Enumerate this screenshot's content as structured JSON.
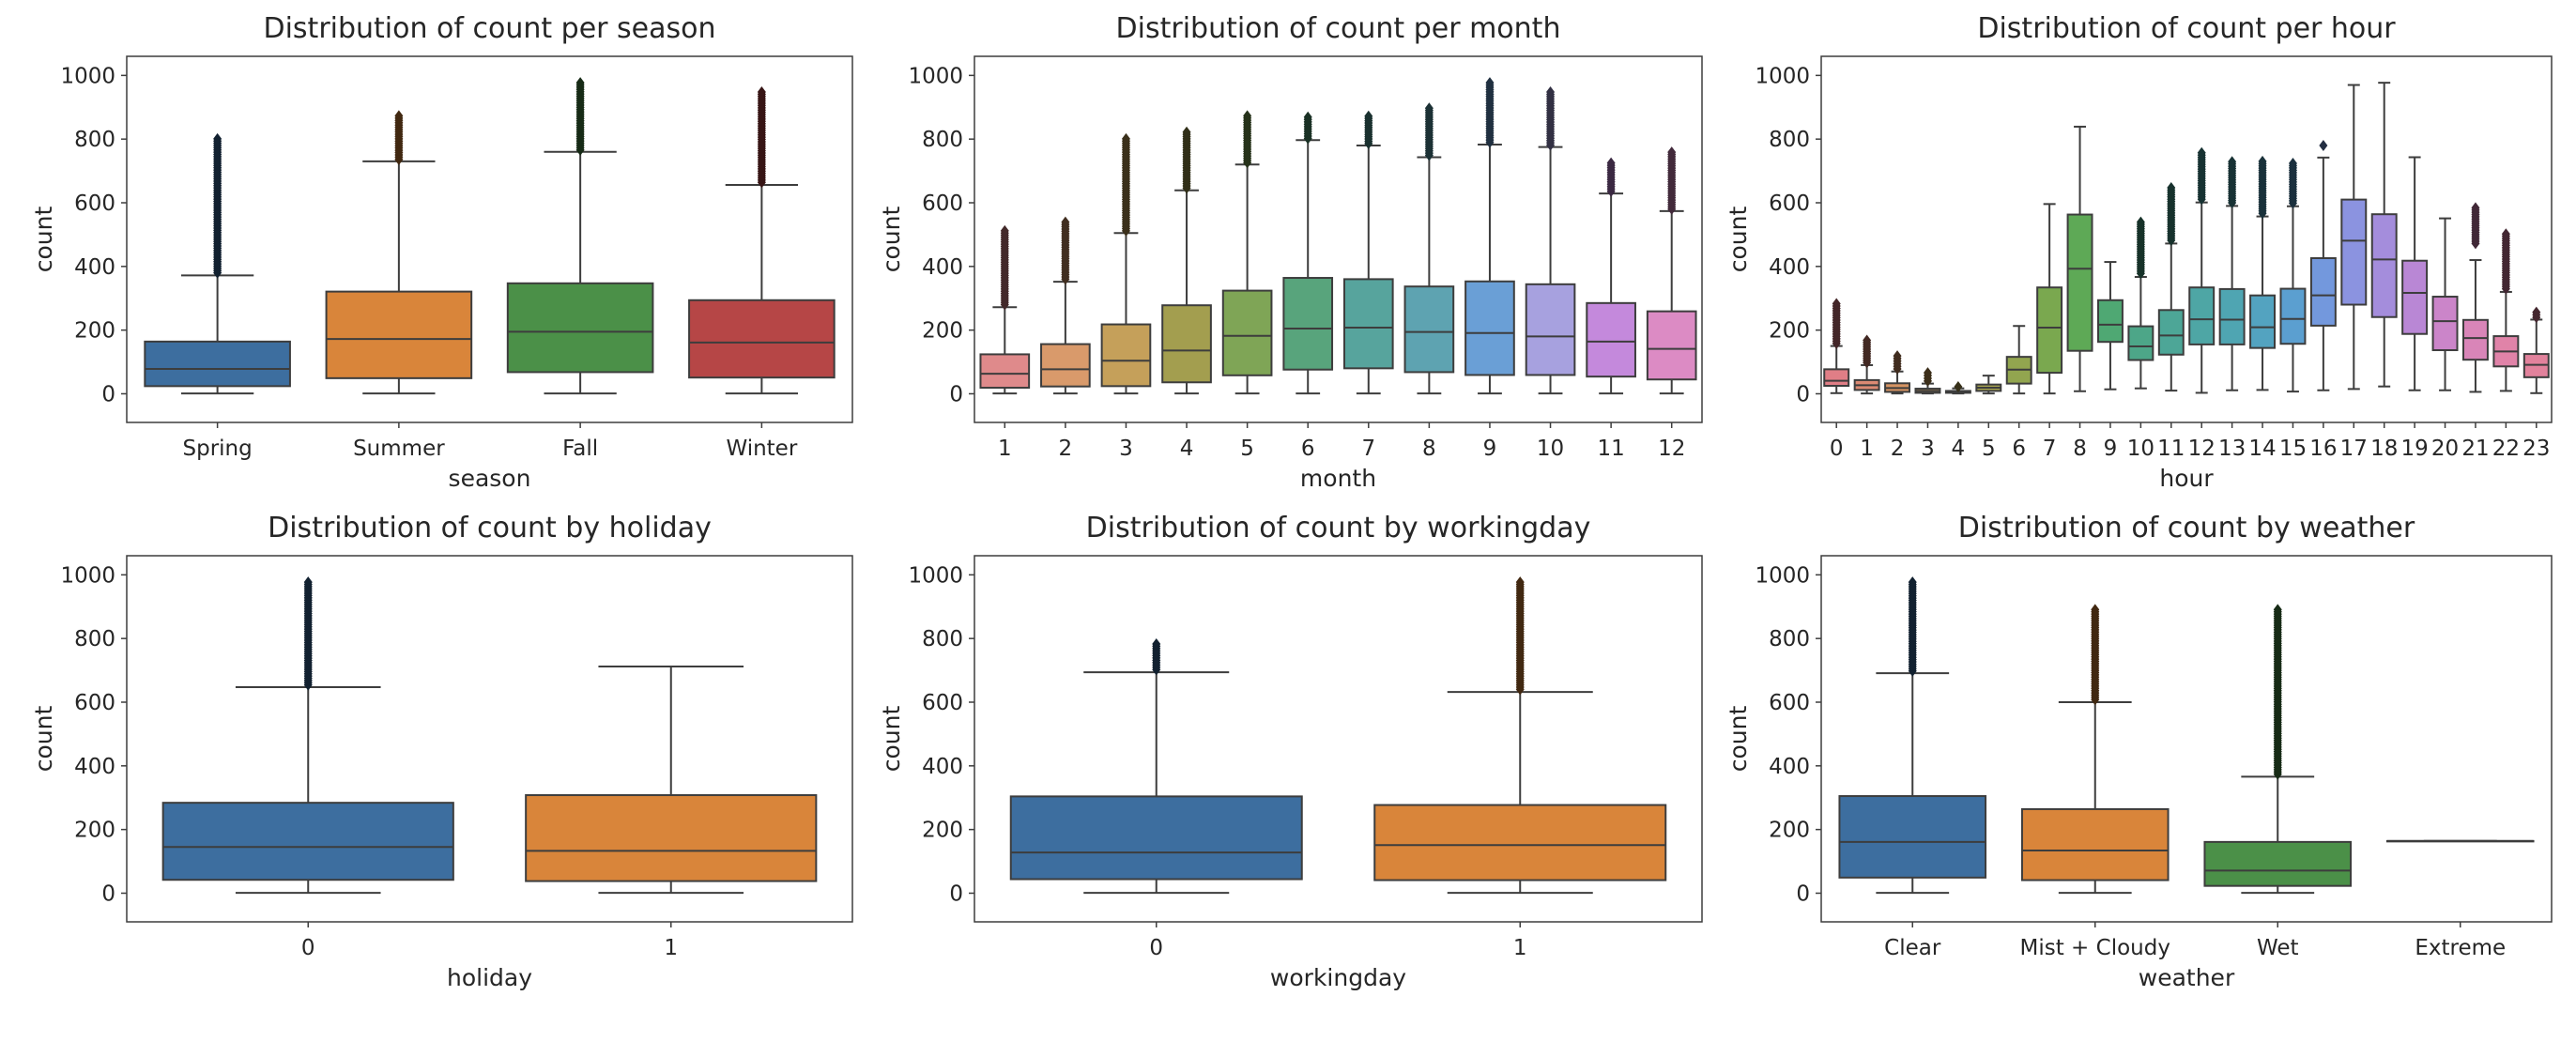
{
  "colors": {
    "deep": [
      "#3d6e9f",
      "#d9853a",
      "#4b9048",
      "#b64646"
    ],
    "month": [
      "#df8a8b",
      "#d99a6b",
      "#c5a05a",
      "#a39e4f",
      "#7fa556",
      "#58a47c",
      "#57a49d",
      "#5ea3b1",
      "#6a9fd6",
      "#a7a1df",
      "#c489dc",
      "#dc8bc4"
    ],
    "hour": [
      "#e07e86",
      "#dc8a73",
      "#d69463",
      "#c89a56",
      "#b79f52",
      "#a6a34f",
      "#92a54f",
      "#7aa84f",
      "#5ea956",
      "#4fa873",
      "#4da688",
      "#4da697",
      "#4ea6a5",
      "#4fa5b2",
      "#53a3c0",
      "#5b9fd0",
      "#7398dd",
      "#8b93e0",
      "#a48ddc",
      "#b987d5",
      "#cb85c9",
      "#d985b8",
      "#e083a8",
      "#e2829c"
    ],
    "edge": "#3d3d3d",
    "frame": "#3d3d3d"
  },
  "chart_data": [
    {
      "type": "box",
      "title": "Distribution of count per season",
      "xlabel": "season",
      "ylabel": "count",
      "ylim": [
        -90,
        1060
      ],
      "yticks": [
        0,
        200,
        400,
        600,
        800,
        1000
      ],
      "palette": "deep",
      "categories": [
        "Spring",
        "Summer",
        "Fall",
        "Winter"
      ],
      "boxes": [
        {
          "whislo": 1,
          "q1": 24,
          "med": 78,
          "q3": 164,
          "whishi": 372,
          "flier_from": 380,
          "flier_to": 801
        },
        {
          "whislo": 1,
          "q1": 49,
          "med": 172,
          "q3": 321,
          "whishi": 730,
          "flier_from": 736,
          "flier_to": 873
        },
        {
          "whislo": 1,
          "q1": 68,
          "med": 195,
          "q3": 347,
          "whishi": 760,
          "flier_from": 766,
          "flier_to": 977
        },
        {
          "whislo": 1,
          "q1": 51,
          "med": 161,
          "q3": 294,
          "whishi": 656,
          "flier_from": 664,
          "flier_to": 948
        }
      ]
    },
    {
      "type": "box",
      "title": "Distribution of count per month",
      "xlabel": "month",
      "ylabel": "count",
      "ylim": [
        -90,
        1060
      ],
      "yticks": [
        0,
        200,
        400,
        600,
        800,
        1000
      ],
      "palette": "month",
      "categories": [
        "1",
        "2",
        "3",
        "4",
        "5",
        "6",
        "7",
        "8",
        "9",
        "10",
        "11",
        "12"
      ],
      "boxes": [
        {
          "whislo": 1,
          "q1": 19,
          "med": 63,
          "q3": 124,
          "whishi": 272,
          "flier_from": 280,
          "flier_to": 512
        },
        {
          "whislo": 1,
          "q1": 23,
          "med": 77,
          "q3": 156,
          "whishi": 352,
          "flier_from": 360,
          "flier_to": 539
        },
        {
          "whislo": 1,
          "q1": 24,
          "med": 104,
          "q3": 218,
          "whishi": 505,
          "flier_from": 512,
          "flier_to": 801
        },
        {
          "whislo": 1,
          "q1": 36,
          "med": 136,
          "q3": 278,
          "whishi": 639,
          "flier_from": 646,
          "flier_to": 822
        },
        {
          "whislo": 1,
          "q1": 58,
          "med": 182,
          "q3": 324,
          "whishi": 720,
          "flier_from": 726,
          "flier_to": 873
        },
        {
          "whislo": 1,
          "q1": 76,
          "med": 205,
          "q3": 364,
          "whishi": 797,
          "flier_from": 802,
          "flier_to": 869
        },
        {
          "whislo": 1,
          "q1": 80,
          "med": 208,
          "q3": 360,
          "whishi": 780,
          "flier_from": 786,
          "flier_to": 872
        },
        {
          "whislo": 1,
          "q1": 68,
          "med": 194,
          "q3": 337,
          "whishi": 743,
          "flier_from": 749,
          "flier_to": 897
        },
        {
          "whislo": 1,
          "q1": 59,
          "med": 191,
          "q3": 353,
          "whishi": 783,
          "flier_from": 790,
          "flier_to": 977
        },
        {
          "whislo": 1,
          "q1": 59,
          "med": 180,
          "q3": 344,
          "whishi": 775,
          "flier_from": 781,
          "flier_to": 948
        },
        {
          "whislo": 1,
          "q1": 54,
          "med": 164,
          "q3": 285,
          "whishi": 629,
          "flier_from": 636,
          "flier_to": 725
        },
        {
          "whislo": 1,
          "q1": 45,
          "med": 141,
          "q3": 259,
          "whishi": 574,
          "flier_from": 580,
          "flier_to": 759
        }
      ]
    },
    {
      "type": "box",
      "title": "Distribution of count per hour",
      "xlabel": "hour",
      "ylabel": "count",
      "ylim": [
        -90,
        1060
      ],
      "yticks": [
        0,
        200,
        400,
        600,
        800,
        1000
      ],
      "palette": "hour",
      "categories": [
        "0",
        "1",
        "2",
        "3",
        "4",
        "5",
        "6",
        "7",
        "8",
        "9",
        "10",
        "11",
        "12",
        "13",
        "14",
        "15",
        "16",
        "17",
        "18",
        "19",
        "20",
        "21",
        "22",
        "23"
      ],
      "boxes": [
        {
          "whislo": 2,
          "q1": 25,
          "med": 41,
          "q3": 77,
          "whishi": 150,
          "flier_from": 158,
          "flier_to": 283
        },
        {
          "whislo": 1,
          "q1": 12,
          "med": 27,
          "q3": 43,
          "whishi": 90,
          "flier_from": 98,
          "flier_to": 168
        },
        {
          "whislo": 1,
          "q1": 6,
          "med": 18,
          "q3": 33,
          "whishi": 70,
          "flier_from": 78,
          "flier_to": 119
        },
        {
          "whislo": 1,
          "q1": 3,
          "med": 9,
          "q3": 16,
          "whishi": 32,
          "flier_from": 40,
          "flier_to": 66
        },
        {
          "whislo": 1,
          "q1": 3,
          "med": 6,
          "q3": 9,
          "whishi": 17,
          "flier_from": 22,
          "flier_to": 28
        },
        {
          "whislo": 1,
          "q1": 9,
          "med": 19,
          "q3": 29,
          "whishi": 57
        },
        {
          "whislo": 1,
          "q1": 32,
          "med": 76,
          "q3": 116,
          "whishi": 213
        },
        {
          "whislo": 1,
          "q1": 66,
          "med": 208,
          "q3": 334,
          "whishi": 596
        },
        {
          "whislo": 8,
          "q1": 135,
          "med": 393,
          "q3": 563,
          "whishi": 839
        },
        {
          "whislo": 14,
          "q1": 163,
          "med": 217,
          "q3": 294,
          "whishi": 414
        },
        {
          "whislo": 17,
          "q1": 106,
          "med": 149,
          "q3": 212,
          "whishi": 367,
          "flier_from": 378,
          "flier_to": 539
        },
        {
          "whislo": 10,
          "q1": 123,
          "med": 183,
          "q3": 263,
          "whishi": 472,
          "flier_from": 482,
          "flier_to": 647
        },
        {
          "whislo": 3,
          "q1": 155,
          "med": 234,
          "q3": 334,
          "whishi": 601,
          "flier_from": 611,
          "flier_to": 757
        },
        {
          "whislo": 11,
          "q1": 155,
          "med": 233,
          "q3": 329,
          "whishi": 590,
          "flier_from": 600,
          "flier_to": 729
        },
        {
          "whislo": 12,
          "q1": 144,
          "med": 209,
          "q3": 309,
          "whishi": 557,
          "flier_from": 567,
          "flier_to": 730
        },
        {
          "whislo": 7,
          "q1": 157,
          "med": 235,
          "q3": 330,
          "whishi": 589,
          "flier_from": 599,
          "flier_to": 724
        },
        {
          "whislo": 11,
          "q1": 214,
          "med": 309,
          "q3": 426,
          "whishi": 742,
          "flier_from": 780,
          "flier_to": 780
        },
        {
          "whislo": 15,
          "q1": 280,
          "med": 481,
          "q3": 610,
          "whishi": 970
        },
        {
          "whislo": 23,
          "q1": 241,
          "med": 422,
          "q3": 564,
          "whishi": 977
        },
        {
          "whislo": 11,
          "q1": 188,
          "med": 317,
          "q3": 418,
          "whishi": 743
        },
        {
          "whislo": 11,
          "q1": 137,
          "med": 228,
          "q3": 305,
          "whishi": 551
        },
        {
          "whislo": 6,
          "q1": 107,
          "med": 175,
          "q3": 232,
          "whishi": 420,
          "flier_from": 472,
          "flier_to": 584
        },
        {
          "whislo": 9,
          "q1": 86,
          "med": 133,
          "q3": 181,
          "whishi": 320,
          "flier_from": 330,
          "flier_to": 502
        },
        {
          "whislo": 2,
          "q1": 52,
          "med": 91,
          "q3": 125,
          "whishi": 233,
          "flier_from": 240,
          "flier_to": 256
        }
      ]
    },
    {
      "type": "box",
      "title": "Distribution of count by holiday",
      "xlabel": "holiday",
      "ylabel": "count",
      "ylim": [
        -90,
        1060
      ],
      "yticks": [
        0,
        200,
        400,
        600,
        800,
        1000
      ],
      "palette": "deep",
      "categories": [
        "0",
        "1"
      ],
      "boxes": [
        {
          "whislo": 1,
          "q1": 42,
          "med": 145,
          "q3": 284,
          "whishi": 647,
          "flier_from": 654,
          "flier_to": 977
        },
        {
          "whislo": 1,
          "q1": 38,
          "med": 133,
          "q3": 308,
          "whishi": 712
        }
      ]
    },
    {
      "type": "box",
      "title": "Distribution of count by workingday",
      "xlabel": "workingday",
      "ylabel": "count",
      "ylim": [
        -90,
        1060
      ],
      "yticks": [
        0,
        200,
        400,
        600,
        800,
        1000
      ],
      "palette": "deep",
      "categories": [
        "0",
        "1"
      ],
      "boxes": [
        {
          "whislo": 1,
          "q1": 44,
          "med": 128,
          "q3": 304,
          "whishi": 694,
          "flier_from": 702,
          "flier_to": 783
        },
        {
          "whislo": 1,
          "q1": 41,
          "med": 151,
          "q3": 277,
          "whishi": 632,
          "flier_from": 640,
          "flier_to": 977
        }
      ]
    },
    {
      "type": "box",
      "title": "Distribution of count by weather",
      "xlabel": "weather",
      "ylabel": "count",
      "ylim": [
        -90,
        1060
      ],
      "yticks": [
        0,
        200,
        400,
        600,
        800,
        1000
      ],
      "palette": "deep",
      "categories": [
        "Clear",
        "Mist + Cloudy",
        "Wet",
        "Extreme"
      ],
      "boxes": [
        {
          "whislo": 1,
          "q1": 49,
          "med": 161,
          "q3": 305,
          "whishi": 691,
          "flier_from": 698,
          "flier_to": 977
        },
        {
          "whislo": 1,
          "q1": 41,
          "med": 134,
          "q3": 264,
          "whishi": 600,
          "flier_from": 608,
          "flier_to": 891
        },
        {
          "whislo": 1,
          "q1": 23,
          "med": 71,
          "q3": 161,
          "whishi": 366,
          "flier_from": 374,
          "flier_to": 891
        },
        {
          "whislo": 164,
          "q1": 164,
          "med": 164,
          "q3": 164,
          "whishi": 164
        }
      ]
    }
  ]
}
